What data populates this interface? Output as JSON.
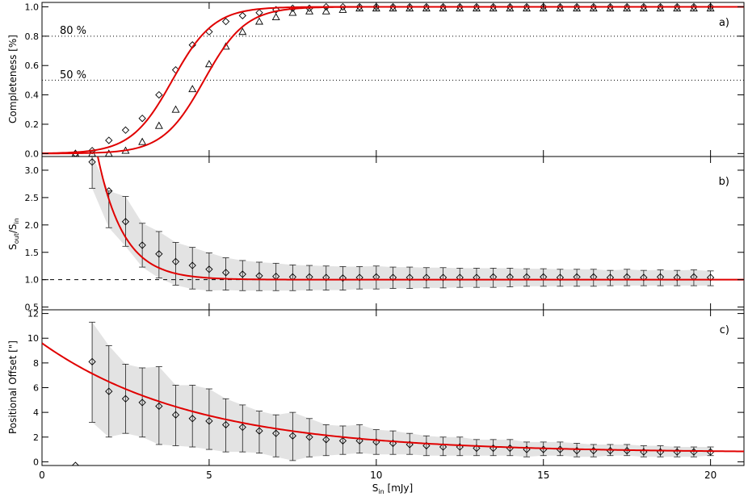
{
  "chart_data": {
    "type": "line",
    "shared_x": {
      "label_main": "S",
      "label_sub": "in",
      "label_unit": " [mJy]",
      "xlim": [
        0,
        21
      ],
      "ticks": [
        0,
        5,
        10,
        15,
        20
      ],
      "tick_labels": [
        "0",
        "5",
        "10",
        "15",
        "20"
      ]
    },
    "panels": [
      {
        "id": "a",
        "panel_label": "a)",
        "ylabel": "Completeness [%]",
        "ylim": [
          -0.02,
          1.03
        ],
        "yticks": [
          0.0,
          0.2,
          0.4,
          0.6,
          0.8,
          1.0
        ],
        "ytick_labels": [
          "0.0",
          "0.2",
          "0.4",
          "0.6",
          "0.8",
          "1.0"
        ],
        "reference_lines": [
          {
            "y": 0.8,
            "label": "80 %",
            "style": "dotted"
          },
          {
            "y": 0.5,
            "label": "50 %",
            "style": "dotted"
          }
        ],
        "series": [
          {
            "marker": "diamond",
            "x": [
              1.0,
              1.5,
              2.0,
              2.5,
              3.0,
              3.5,
              4.0,
              4.5,
              5.0,
              5.5,
              6.0,
              6.5,
              7.0,
              7.5,
              8.0,
              8.5,
              9.0,
              9.5,
              10.0,
              10.5,
              11.0,
              11.5,
              12.0,
              12.5,
              13.0,
              13.5,
              14.0,
              14.5,
              15.0,
              15.5,
              16.0,
              16.5,
              17.0,
              17.5,
              18.0,
              18.5,
              19.0,
              19.5,
              20.0
            ],
            "y": [
              0.0,
              0.02,
              0.09,
              0.16,
              0.24,
              0.4,
              0.57,
              0.74,
              0.83,
              0.9,
              0.94,
              0.96,
              0.98,
              0.99,
              0.99,
              1.0,
              1.0,
              1.0,
              1.0,
              1.0,
              1.0,
              1.0,
              1.0,
              1.0,
              1.0,
              1.0,
              1.0,
              1.0,
              1.0,
              1.0,
              1.0,
              1.0,
              1.0,
              1.0,
              1.0,
              1.0,
              1.0,
              1.0,
              1.0
            ]
          },
          {
            "marker": "triangle",
            "x": [
              1.0,
              1.5,
              2.0,
              2.5,
              3.0,
              3.5,
              4.0,
              4.5,
              5.0,
              5.5,
              6.0,
              6.5,
              7.0,
              7.5,
              8.0,
              8.5,
              9.0,
              9.5,
              10.0,
              10.5,
              11.0,
              11.5,
              12.0,
              12.5,
              13.0,
              13.5,
              14.0,
              14.5,
              15.0,
              15.5,
              16.0,
              16.5,
              17.0,
              17.5,
              18.0,
              18.5,
              19.0,
              19.5,
              20.0
            ],
            "y": [
              0.0,
              0.0,
              0.0,
              0.02,
              0.08,
              0.19,
              0.3,
              0.44,
              0.61,
              0.73,
              0.83,
              0.9,
              0.93,
              0.96,
              0.97,
              0.97,
              0.98,
              0.99,
              0.99,
              0.99,
              0.99,
              0.99,
              0.99,
              0.99,
              0.99,
              0.99,
              0.99,
              0.99,
              0.99,
              0.99,
              0.99,
              0.99,
              0.99,
              0.99,
              0.99,
              0.99,
              0.99,
              0.99,
              0.99
            ]
          }
        ],
        "fits": [
          {
            "form": "logistic",
            "midpoint": 3.9,
            "scale": 0.62
          },
          {
            "form": "logistic",
            "midpoint": 4.85,
            "scale": 0.62
          }
        ]
      },
      {
        "id": "b",
        "panel_label": "b)",
        "ylabel": "S_out/S_in",
        "ylabel_parts": {
          "s1": "S",
          "sub1": "out",
          "slash": "/S",
          "sub2": "in"
        },
        "ylim": [
          0.45,
          3.25
        ],
        "yticks": [
          0.5,
          1.0,
          1.5,
          2.0,
          2.5,
          3.0
        ],
        "ytick_labels": [
          "0.5",
          "1.0",
          "1.5",
          "2.0",
          "2.5",
          "3.0"
        ],
        "reference_lines": [
          {
            "y": 1.0,
            "style": "dashed"
          }
        ],
        "series": [
          {
            "marker": "diamond",
            "x": [
              1.5,
              2.0,
              2.5,
              3.0,
              3.5,
              4.0,
              4.5,
              5.0,
              5.5,
              6.0,
              6.5,
              7.0,
              7.5,
              8.0,
              8.5,
              9.0,
              9.5,
              10.0,
              10.5,
              11.0,
              11.5,
              12.0,
              12.5,
              13.0,
              13.5,
              14.0,
              14.5,
              15.0,
              15.5,
              16.0,
              16.5,
              17.0,
              17.5,
              18.0,
              18.5,
              19.0,
              19.5,
              20.0
            ],
            "y": [
              3.15,
              2.62,
              2.06,
              1.63,
              1.47,
              1.33,
              1.26,
              1.19,
              1.13,
              1.1,
              1.07,
              1.06,
              1.05,
              1.05,
              1.04,
              1.03,
              1.04,
              1.05,
              1.04,
              1.04,
              1.04,
              1.04,
              1.04,
              1.04,
              1.05,
              1.05,
              1.05,
              1.05,
              1.04,
              1.05,
              1.05,
              1.04,
              1.05,
              1.04,
              1.05,
              1.04,
              1.05,
              1.04
            ],
            "err_low": [
              0.48,
              0.67,
              0.45,
              0.4,
              0.44,
              0.43,
              0.43,
              0.39,
              0.32,
              0.3,
              0.27,
              0.26,
              0.25,
              0.24,
              0.23,
              0.22,
              0.21,
              0.22,
              0.2,
              0.2,
              0.19,
              0.19,
              0.18,
              0.18,
              0.19,
              0.18,
              0.17,
              0.17,
              0.16,
              0.17,
              0.17,
              0.15,
              0.16,
              0.15,
              0.16,
              0.15,
              0.16,
              0.15
            ],
            "err_high": [
              0.12,
              0.0,
              0.46,
              0.4,
              0.41,
              0.35,
              0.33,
              0.3,
              0.27,
              0.25,
              0.25,
              0.24,
              0.22,
              0.21,
              0.21,
              0.21,
              0.2,
              0.2,
              0.19,
              0.19,
              0.18,
              0.18,
              0.17,
              0.17,
              0.16,
              0.16,
              0.15,
              0.15,
              0.15,
              0.14,
              0.14,
              0.13,
              0.14,
              0.13,
              0.13,
              0.13,
              0.13,
              0.12
            ]
          }
        ],
        "fits": [
          {
            "form": "exp_decay",
            "asymptote": 1.0,
            "amplitude": 5.3,
            "x0": 1.0,
            "scale": 0.78
          }
        ]
      },
      {
        "id": "c",
        "panel_label": "c)",
        "ylabel": "Positional Offset [\"]",
        "ylim": [
          -0.3,
          12.3
        ],
        "yticks": [
          0,
          2,
          4,
          6,
          8,
          10,
          12
        ],
        "ytick_labels": [
          "0",
          "2",
          "4",
          "6",
          "8",
          "10",
          "12"
        ],
        "series": [
          {
            "marker": "diamond",
            "x": [
              1.0,
              1.5,
              2.0,
              2.5,
              3.0,
              3.5,
              4.0,
              4.5,
              5.0,
              5.5,
              6.0,
              6.5,
              7.0,
              7.5,
              8.0,
              8.5,
              9.0,
              9.5,
              10.0,
              10.5,
              11.0,
              11.5,
              12.0,
              12.5,
              13.0,
              13.5,
              14.0,
              14.5,
              15.0,
              15.5,
              16.0,
              16.5,
              17.0,
              17.5,
              18.0,
              18.5,
              19.0,
              19.5,
              20.0
            ],
            "y": [
              -0.3,
              8.1,
              5.7,
              5.1,
              4.8,
              4.5,
              3.8,
              3.5,
              3.3,
              3.0,
              2.8,
              2.5,
              2.3,
              2.1,
              2.0,
              1.8,
              1.7,
              1.7,
              1.6,
              1.5,
              1.4,
              1.3,
              1.2,
              1.2,
              1.1,
              1.1,
              1.1,
              1.0,
              1.0,
              1.0,
              0.9,
              0.9,
              0.9,
              0.9,
              0.8,
              0.8,
              0.8,
              0.8,
              0.8
            ],
            "err_low": [
              0,
              4.9,
              3.7,
              2.8,
              2.8,
              3.1,
              2.5,
              2.3,
              2.3,
              2.2,
              2.0,
              1.8,
              1.9,
              2.0,
              1.6,
              1.3,
              1.1,
              1.0,
              1.0,
              0.9,
              0.8,
              0.8,
              0.7,
              0.7,
              0.6,
              0.6,
              0.6,
              0.6,
              0.5,
              0.5,
              0.5,
              0.5,
              0.4,
              0.4,
              0.4,
              0.4,
              0.4,
              0.4,
              0.3
            ],
            "err_high": [
              0,
              3.2,
              3.7,
              2.8,
              2.8,
              3.2,
              2.4,
              2.7,
              2.6,
              2.1,
              1.8,
              1.6,
              1.5,
              1.9,
              1.5,
              1.2,
              1.2,
              1.3,
              1.0,
              1.0,
              0.9,
              0.8,
              0.8,
              0.8,
              0.7,
              0.7,
              0.7,
              0.6,
              0.6,
              0.6,
              0.6,
              0.5,
              0.5,
              0.5,
              0.5,
              0.5,
              0.4,
              0.4,
              0.4
            ]
          }
        ],
        "fits": [
          {
            "form": "exp_decay",
            "asymptote": 0.75,
            "amplitude": 8.85,
            "x0": 0.0,
            "scale": 4.6
          }
        ]
      }
    ],
    "colors": {
      "fit_line": "#e00000",
      "error_band": "#e3e3e3",
      "markers": "#000000",
      "reference_line": "#000000"
    },
    "grid": false
  }
}
